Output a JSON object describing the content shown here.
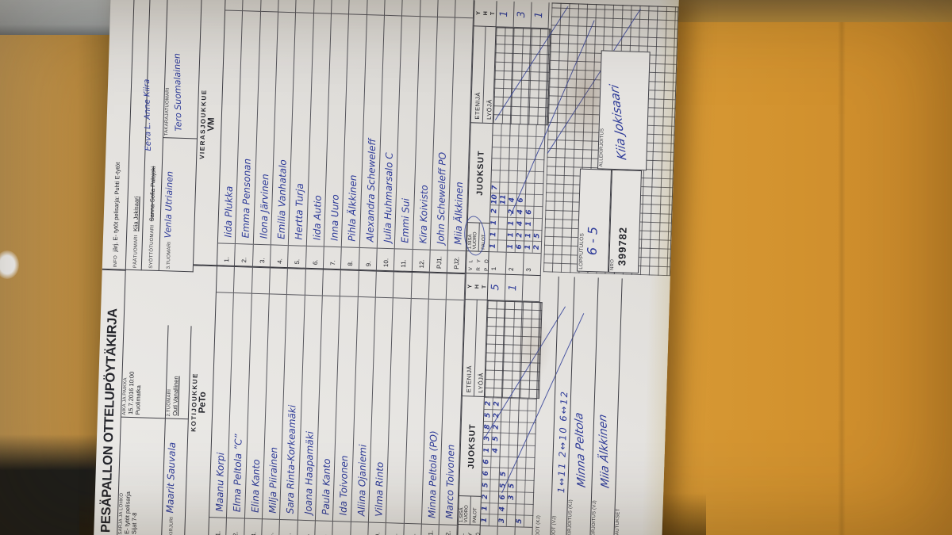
{
  "colors": {
    "ink_blue": "#2f3c99",
    "paper": "#e6e4e1",
    "grid_line": "#3f3f46",
    "envelope_orange": "#d3932f",
    "wood_tan": "#c59a56"
  },
  "header": {
    "title": "PESÄPALLON OTTELUPÖYTÄKIRJA",
    "sarja_label": "SARJA JA LOHKO",
    "sarja_value1": "E- tytöt pelisarja",
    "sarja_value2": "Sijat 7-8",
    "kirjuri_label": "KIRJURI",
    "kirjuri_value": "Maarit Sauvala",
    "aika_label": "AIKA JA PAIKKA",
    "aika_value1": "15.7.2016 10:00",
    "aika_value2": "Puolimatka",
    "tuomari2_label": "2.TUOMARI",
    "tuomari2_value": "Outi Vanaliinen",
    "info_label": "INFO",
    "info_value": "järj. E- tytöt pelisarja: Puhti E-tytöt",
    "paatuomari_label": "PÄÄTUOMARI",
    "paatuomari_value": "Kiia Jokisaari",
    "syottotuomari_label": "SYÖTTÖTUOMARI",
    "syottotuomari_printed": "Sanna-Sofia Palojoki",
    "syottotuomari_hand": "Eeva L. Anne Kiira",
    "tuomari3_label": "3.TUOMARI",
    "tuomari3_value": "Venla Utriainen",
    "takaraja_label": "TAKARAJATUOMARI",
    "takaraja_value": "Tero Suomalainen"
  },
  "teams": {
    "home": {
      "section_label": "KOTIJOUKKUE",
      "name": "PeTo",
      "players": [
        {
          "num": "1.",
          "name": "Maanu Korpi"
        },
        {
          "num": "2.",
          "name": "Elma Peltola ”C”"
        },
        {
          "num": "3.",
          "name": "Elina Kanto"
        },
        {
          "num": "4.",
          "name": "Milja Piirainen"
        },
        {
          "num": "5.",
          "name": "Sara Rinta-Korkeamäki"
        },
        {
          "num": "6.",
          "name": "Joana Haapamäki"
        },
        {
          "num": "7.",
          "name": "Paula Kanto"
        },
        {
          "num": "8.",
          "name": "Ida Toivonen"
        },
        {
          "num": "9.",
          "name": "Aliina Ojaniemi"
        },
        {
          "num": "10.",
          "name": "Vilma Rinto"
        },
        {
          "num": "11.",
          "name": ""
        },
        {
          "num": "12.",
          "name": ""
        },
        {
          "num": "PJ1.",
          "name": "Minna Peltola (PO)"
        },
        {
          "num": "PJ2.",
          "name": "Marco Toivonen"
        }
      ]
    },
    "away": {
      "section_label": "VIERASJOUKKUE",
      "name": "VM",
      "players": [
        {
          "num": "1.",
          "name": "Iida Plukka"
        },
        {
          "num": "2.",
          "name": "Emma Pensonan"
        },
        {
          "num": "3.",
          "name": "Ilona Järvinen"
        },
        {
          "num": "4.",
          "name": "Emilia Vanhatalo"
        },
        {
          "num": "5.",
          "name": "Hertta Turja"
        },
        {
          "num": "6.",
          "name": "Iida Autio"
        },
        {
          "num": "7.",
          "name": "Inna Uuro"
        },
        {
          "num": "8.",
          "name": "Pihla Älkkinen"
        },
        {
          "num": "9.",
          "name": "Alexandra Scheweleff"
        },
        {
          "num": "10.",
          "name": "Julia Huhmarsalo  C"
        },
        {
          "num": "11.",
          "name": "Emmi Sui"
        },
        {
          "num": "12.",
          "name": "Kira Koivisto"
        },
        {
          "num": "PJ1.",
          "name": "John Scheweleff  PO"
        },
        {
          "num": "PJ2.",
          "name": "Miia Älkkinen"
        }
      ]
    }
  },
  "scoring": {
    "letters_rows": [
      "V L",
      "R Y",
      "P Ö"
    ],
    "sisa_label": "1.SISÄ",
    "vuoro_label": "VUORO",
    "palot_label": "PALOT",
    "juoksut_label": "JUOKSUT",
    "etenija_label": "ETENIJÄ",
    "lyoja_label": "LYÖJÄ",
    "yht_letters": [
      "Y",
      "H",
      "T"
    ],
    "home_innings": [
      {
        "label": "1",
        "line1": [
          "1",
          "1",
          "2",
          "5",
          "6",
          "6",
          "1",
          "3",
          "8",
          "5",
          "2"
        ],
        "line2": [
          "",
          "",
          "",
          "",
          "",
          "",
          "4",
          "5",
          "2",
          "2",
          "2"
        ],
        "yht": "5"
      },
      {
        "label": "2",
        "line1": [
          "3",
          "4",
          "6",
          "5",
          "5",
          "",
          "",
          "",
          "",
          "",
          ""
        ],
        "line2": [
          "",
          "",
          "3",
          "5",
          "",
          "",
          "",
          "",
          "",
          "",
          ""
        ],
        "yht": "1"
      },
      {
        "label": "3",
        "line1": [
          "5",
          "",
          "",
          "",
          "",
          "",
          "",
          "",
          "",
          "",
          ""
        ],
        "line2": [
          "",
          "",
          "",
          "",
          "",
          "",
          "",
          "",
          "",
          "",
          ""
        ],
        "yht": ""
      }
    ],
    "away_innings": [
      {
        "label": "1",
        "line1": [
          "1",
          "1",
          "1",
          "2",
          "10",
          "7",
          "",
          "",
          "",
          "",
          ""
        ],
        "line2": [
          "",
          "",
          "",
          "",
          "11",
          "",
          "",
          "",
          "",
          "",
          ""
        ],
        "yht": "1"
      },
      {
        "label": "2",
        "line1": [
          "1",
          "1",
          "1",
          "2",
          "4",
          "",
          "",
          "",
          "",
          "",
          ""
        ],
        "line2": [
          "6",
          "2",
          "4",
          "4",
          "6",
          "",
          "",
          "",
          "",
          "",
          ""
        ],
        "yht": "3"
      },
      {
        "label": "3",
        "line1": [
          "1",
          "1",
          "1",
          "6",
          "",
          "",
          "",
          "",
          "",
          "",
          ""
        ],
        "line2": [
          "2",
          "5",
          "",
          "",
          "",
          "",
          "",
          "",
          "",
          "",
          ""
        ],
        "yht": "1"
      }
    ]
  },
  "footer": {
    "vaihdot_kj_label": "VAIHDOT (KJ)",
    "vaihdot_kj_value": "",
    "vaihdot_vj_label": "VAIHDOT (VJ)",
    "vaihdot_vj_value": "1↔11   2↔10   6↔12",
    "allekirjoitus_kj_label": "ALLEKIRJOITUS (KJ)",
    "allekirjoitus_kj_sig": "Minna Peltola",
    "allekirjoitus_vj_label": "ALLEKIRJOITUS (VJ)",
    "allekirjoitus_vj_sig": "Miia Älkkinen",
    "huomautukset_label": "HUOMAUTUKSET",
    "lopputulos_label": "LOPPUTULOS",
    "lopputulos_value": "6 - 5",
    "nro_label": "NRO",
    "nro_value": "399782",
    "allekirjoitus_label": "ALLEKIRJOITUS",
    "allekirjoitus_sig": "Kiia Jokisaari"
  }
}
